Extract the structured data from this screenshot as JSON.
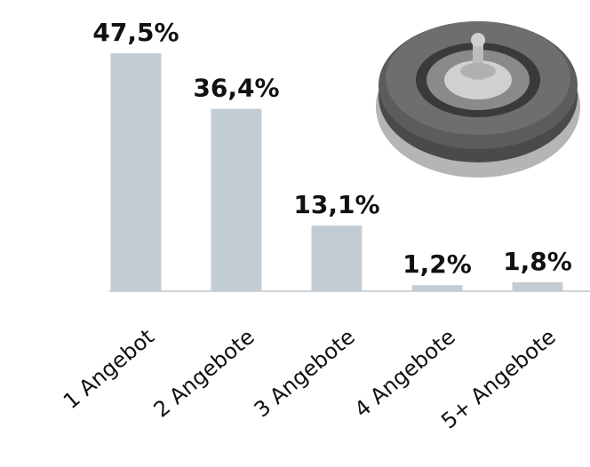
{
  "chart_data": {
    "type": "bar",
    "categories": [
      "1 Angebot",
      "2 Angebote",
      "3 Angebote",
      "4 Angebote",
      "5+ Angebote"
    ],
    "values": [
      47.5,
      36.4,
      13.1,
      1.2,
      1.8
    ],
    "value_labels": [
      "47,5%",
      "36,4%",
      "13,1%",
      "1,2%",
      "1,8%"
    ],
    "color": "#c4ccd3"
  }
}
